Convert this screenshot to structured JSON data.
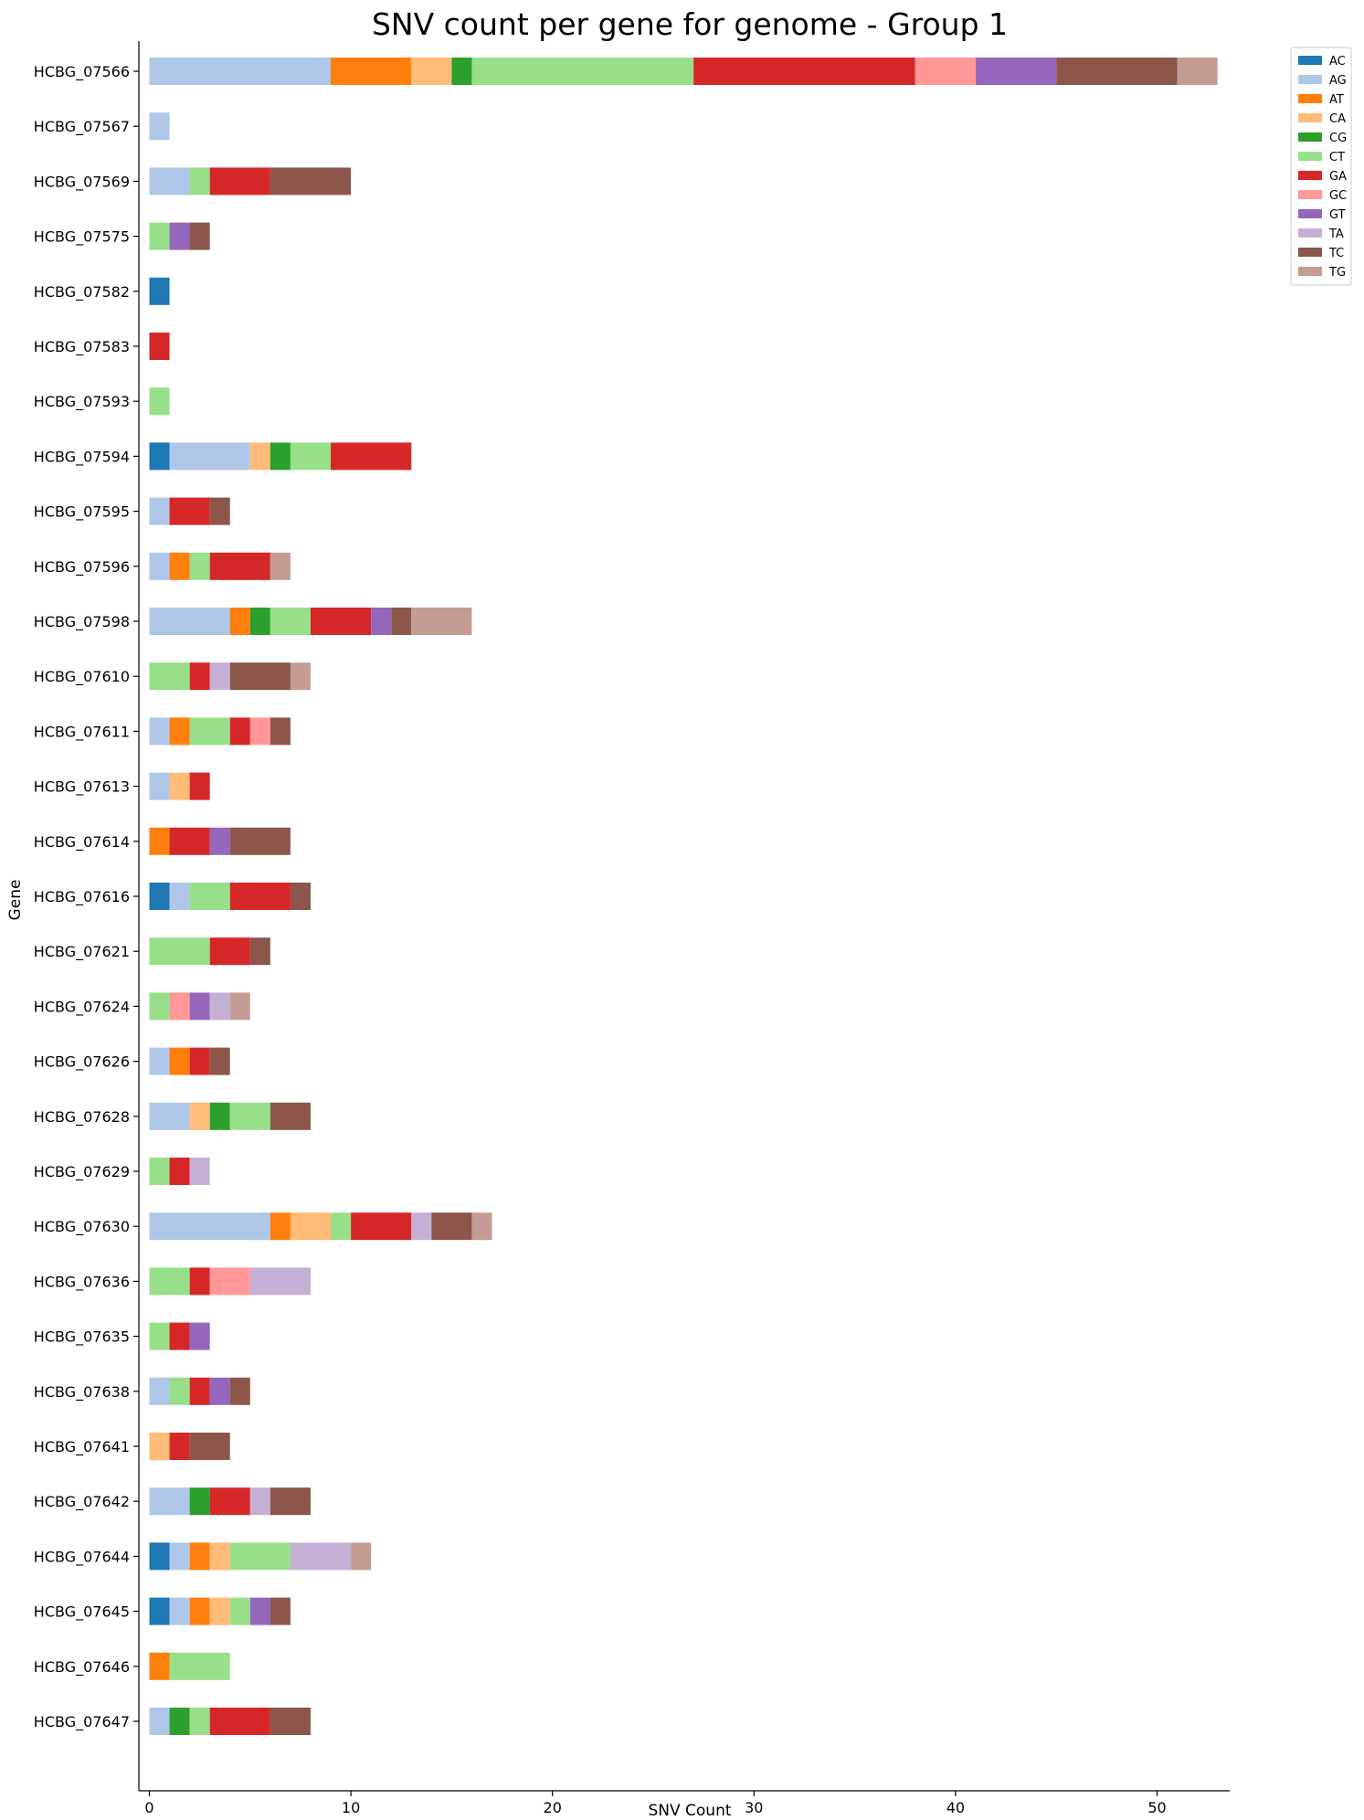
{
  "chart_data": {
    "type": "bar",
    "orientation": "horizontal",
    "stacked": true,
    "title": "SNV count per gene for genome - Group 1",
    "xlabel": "SNV Count",
    "ylabel": "Gene",
    "xlim": [
      0,
      53.5
    ],
    "xticks": [
      0,
      10,
      20,
      30,
      40,
      50
    ],
    "grid": false,
    "legend_position": "upper-right-outside",
    "categories": [
      "HCBG_07566",
      "HCBG_07567",
      "HCBG_07569",
      "HCBG_07575",
      "HCBG_07582",
      "HCBG_07583",
      "HCBG_07593",
      "HCBG_07594",
      "HCBG_07595",
      "HCBG_07596",
      "HCBG_07598",
      "HCBG_07610",
      "HCBG_07611",
      "HCBG_07613",
      "HCBG_07614",
      "HCBG_07616",
      "HCBG_07621",
      "HCBG_07624",
      "HCBG_07626",
      "HCBG_07628",
      "HCBG_07629",
      "HCBG_07630",
      "HCBG_07636",
      "HCBG_07635",
      "HCBG_07638",
      "HCBG_07641",
      "HCBG_07642",
      "HCBG_07644",
      "HCBG_07645",
      "HCBG_07646",
      "HCBG_07647"
    ],
    "series": [
      {
        "name": "AC",
        "color": "#1f77b4",
        "values": [
          0,
          0,
          0,
          0,
          1,
          0,
          0,
          1,
          0,
          0,
          0,
          0,
          0,
          0,
          0,
          1,
          0,
          0,
          0,
          0,
          0,
          0,
          0,
          0,
          0,
          0,
          0,
          1,
          1,
          0,
          0
        ]
      },
      {
        "name": "AG",
        "color": "#aec7e8",
        "values": [
          9,
          1,
          2,
          0,
          0,
          0,
          0,
          4,
          1,
          1,
          4,
          0,
          1,
          1,
          0,
          1,
          0,
          0,
          1,
          2,
          0,
          6,
          0,
          0,
          1,
          0,
          2,
          1,
          1,
          0,
          1
        ]
      },
      {
        "name": "AT",
        "color": "#ff7f0e",
        "values": [
          4,
          0,
          0,
          0,
          0,
          0,
          0,
          0,
          0,
          1,
          1,
          0,
          1,
          0,
          1,
          0,
          0,
          0,
          1,
          0,
          0,
          1,
          0,
          0,
          0,
          0,
          0,
          1,
          1,
          1,
          0
        ]
      },
      {
        "name": "CA",
        "color": "#ffbb78",
        "values": [
          2,
          0,
          0,
          0,
          0,
          0,
          0,
          1,
          0,
          0,
          0,
          0,
          0,
          1,
          0,
          0,
          0,
          0,
          0,
          1,
          0,
          2,
          0,
          0,
          0,
          1,
          0,
          1,
          1,
          0,
          0
        ]
      },
      {
        "name": "CG",
        "color": "#2ca02c",
        "values": [
          1,
          0,
          0,
          0,
          0,
          0,
          0,
          1,
          0,
          0,
          1,
          0,
          0,
          0,
          0,
          0,
          0,
          0,
          0,
          1,
          0,
          0,
          0,
          0,
          0,
          0,
          1,
          0,
          0,
          0,
          1
        ]
      },
      {
        "name": "CT",
        "color": "#98df8a",
        "values": [
          11,
          0,
          1,
          1,
          0,
          0,
          1,
          2,
          0,
          1,
          2,
          2,
          2,
          0,
          0,
          2,
          3,
          1,
          0,
          2,
          1,
          1,
          2,
          1,
          1,
          0,
          0,
          3,
          1,
          3,
          1
        ]
      },
      {
        "name": "GA",
        "color": "#d62728",
        "values": [
          11,
          0,
          3,
          0,
          0,
          1,
          0,
          4,
          2,
          3,
          3,
          1,
          1,
          1,
          2,
          3,
          2,
          0,
          1,
          0,
          1,
          3,
          1,
          1,
          1,
          1,
          2,
          0,
          0,
          0,
          3
        ]
      },
      {
        "name": "GC",
        "color": "#ff9896",
        "values": [
          3,
          0,
          0,
          0,
          0,
          0,
          0,
          0,
          0,
          0,
          0,
          0,
          1,
          0,
          0,
          0,
          0,
          1,
          0,
          0,
          0,
          0,
          2,
          0,
          0,
          0,
          0,
          0,
          0,
          0,
          0
        ]
      },
      {
        "name": "GT",
        "color": "#9467bd",
        "values": [
          4,
          0,
          0,
          1,
          0,
          0,
          0,
          0,
          0,
          0,
          1,
          0,
          0,
          0,
          1,
          0,
          0,
          1,
          0,
          0,
          0,
          0,
          0,
          1,
          1,
          0,
          0,
          0,
          1,
          0,
          0
        ]
      },
      {
        "name": "TA",
        "color": "#c5b0d5",
        "values": [
          0,
          0,
          0,
          0,
          0,
          0,
          0,
          0,
          0,
          0,
          0,
          1,
          0,
          0,
          0,
          0,
          0,
          1,
          0,
          0,
          1,
          1,
          3,
          0,
          0,
          0,
          1,
          3,
          0,
          0,
          0
        ]
      },
      {
        "name": "TC",
        "color": "#8c564b",
        "values": [
          6,
          0,
          4,
          1,
          0,
          0,
          0,
          0,
          1,
          0,
          1,
          3,
          1,
          0,
          3,
          1,
          1,
          0,
          1,
          2,
          0,
          2,
          0,
          0,
          1,
          2,
          2,
          0,
          1,
          0,
          2
        ]
      },
      {
        "name": "TG",
        "color": "#c49c94",
        "values": [
          2,
          0,
          0,
          0,
          0,
          0,
          0,
          0,
          0,
          1,
          3,
          1,
          0,
          0,
          0,
          0,
          0,
          1,
          0,
          0,
          0,
          1,
          0,
          0,
          0,
          0,
          0,
          1,
          0,
          0,
          0
        ]
      }
    ]
  }
}
